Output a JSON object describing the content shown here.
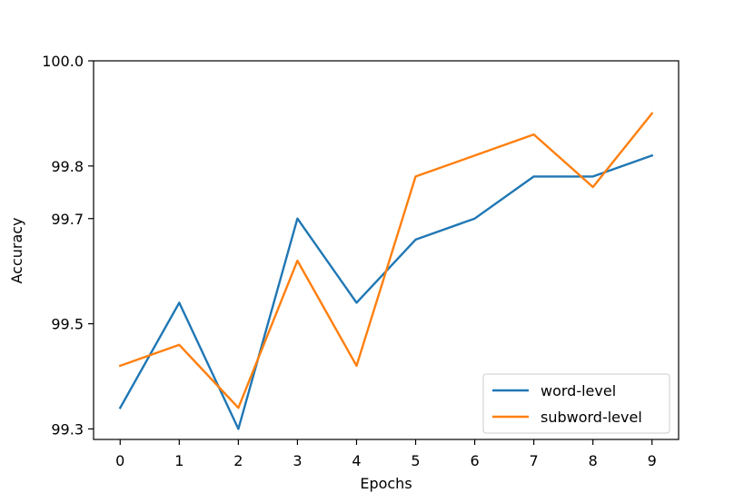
{
  "chart_data": {
    "type": "line",
    "title": "",
    "xlabel": "Epochs",
    "ylabel": "Accuracy",
    "x": [
      0,
      1,
      2,
      3,
      4,
      5,
      6,
      7,
      8,
      9
    ],
    "xticks": [
      "0",
      "1",
      "2",
      "3",
      "4",
      "5",
      "6",
      "7",
      "8",
      "9"
    ],
    "yticks": [
      99.3,
      99.5,
      99.7,
      99.8,
      100.0
    ],
    "ytick_labels": [
      "99.3",
      "99.5",
      "99.7",
      "99.8",
      "100.0"
    ],
    "xlim": [
      -0.45,
      9.45
    ],
    "ylim": [
      99.28,
      100.0
    ],
    "grid": false,
    "legend_position": "lower-right",
    "series": [
      {
        "name": "word-level",
        "color": "#1f77b4",
        "values": [
          99.34,
          99.54,
          99.3,
          99.7,
          99.54,
          99.66,
          99.7,
          99.78,
          99.78,
          99.82
        ]
      },
      {
        "name": "subword-level",
        "color": "#ff7f0e",
        "values": [
          99.42,
          99.46,
          99.34,
          99.62,
          99.42,
          99.78,
          99.82,
          99.86,
          99.76,
          99.9
        ]
      }
    ]
  }
}
